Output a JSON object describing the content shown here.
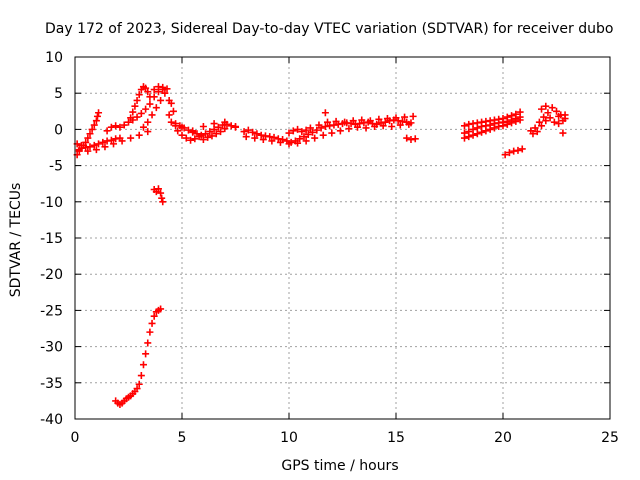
{
  "chart_data": {
    "type": "scatter",
    "title": "Day 172 of 2023, Sidereal Day-to-day VTEC variation (SDTVAR) for receiver dubo",
    "xlabel": "GPS time / hours",
    "ylabel": "SDTVAR / TECUs",
    "xlim": [
      0,
      25
    ],
    "ylim": [
      -40,
      10
    ],
    "xticks": [
      0,
      5,
      10,
      15,
      20,
      25
    ],
    "yticks": [
      -40,
      -35,
      -30,
      -25,
      -20,
      -15,
      -10,
      -5,
      0,
      5,
      10
    ],
    "grid": true,
    "marker": "+",
    "series_color": "#ff0000",
    "series": [
      {
        "name": "SDTVAR",
        "points": [
          [
            0.1,
            -3.5
          ],
          [
            0.2,
            -3.0
          ],
          [
            0.3,
            -2.6
          ],
          [
            0.4,
            -2.2
          ],
          [
            0.5,
            -1.8
          ],
          [
            0.6,
            -1.2
          ],
          [
            0.7,
            -0.6
          ],
          [
            0.8,
            0.0
          ],
          [
            0.9,
            0.6
          ],
          [
            1.0,
            1.2
          ],
          [
            1.05,
            1.8
          ],
          [
            1.1,
            2.3
          ],
          [
            0.1,
            -2.0
          ],
          [
            0.3,
            -2.2
          ],
          [
            0.5,
            -2.5
          ],
          [
            0.7,
            -2.4
          ],
          [
            0.9,
            -2.2
          ],
          [
            1.1,
            -2.0
          ],
          [
            1.3,
            -1.8
          ],
          [
            1.5,
            -1.6
          ],
          [
            1.7,
            -1.5
          ],
          [
            1.9,
            -1.3
          ],
          [
            2.1,
            -1.2
          ],
          [
            0.2,
            -2.8
          ],
          [
            0.6,
            -3.0
          ],
          [
            1.0,
            -2.8
          ],
          [
            1.4,
            -2.4
          ],
          [
            1.8,
            -2.0
          ],
          [
            2.2,
            -1.6
          ],
          [
            2.6,
            -1.2
          ],
          [
            3.0,
            -0.8
          ],
          [
            3.4,
            -0.3
          ],
          [
            1.5,
            -0.2
          ],
          [
            1.7,
            0.3
          ],
          [
            1.9,
            0.5
          ],
          [
            2.1,
            0.3
          ],
          [
            2.3,
            0.6
          ],
          [
            2.5,
            1.0
          ],
          [
            2.7,
            1.3
          ],
          [
            2.9,
            1.7
          ],
          [
            3.1,
            2.2
          ],
          [
            3.3,
            2.8
          ],
          [
            3.5,
            3.5
          ],
          [
            3.7,
            4.5
          ],
          [
            3.9,
            5.2
          ],
          [
            4.1,
            5.5
          ],
          [
            4.2,
            5.0
          ],
          [
            4.0,
            4.0
          ],
          [
            3.8,
            3.0
          ],
          [
            3.6,
            2.0
          ],
          [
            3.4,
            1.0
          ],
          [
            3.2,
            0.3
          ],
          [
            2.6,
            1.6
          ],
          [
            2.7,
            2.4
          ],
          [
            2.8,
            3.2
          ],
          [
            2.9,
            4.0
          ],
          [
            3.0,
            4.8
          ],
          [
            3.1,
            5.5
          ],
          [
            3.2,
            5.9
          ],
          [
            3.3,
            5.7
          ],
          [
            3.4,
            5.2
          ],
          [
            3.5,
            4.5
          ],
          [
            3.7,
            5.5
          ],
          [
            3.9,
            5.9
          ],
          [
            4.1,
            5.8
          ],
          [
            4.3,
            5.6
          ],
          [
            4.4,
            4.0
          ],
          [
            4.5,
            3.6
          ],
          [
            4.6,
            2.5
          ],
          [
            4.4,
            2.0
          ],
          [
            4.5,
            1.0
          ],
          [
            4.7,
            0.8
          ],
          [
            4.9,
            0.5
          ],
          [
            5.1,
            0.2
          ],
          [
            5.3,
            -0.1
          ],
          [
            5.5,
            -0.4
          ],
          [
            5.7,
            -0.6
          ],
          [
            5.9,
            -0.8
          ],
          [
            6.1,
            -0.6
          ],
          [
            6.3,
            -0.3
          ],
          [
            6.5,
            0.0
          ],
          [
            6.7,
            0.3
          ],
          [
            6.9,
            0.6
          ],
          [
            7.1,
            0.7
          ],
          [
            7.3,
            0.5
          ],
          [
            7.5,
            0.3
          ],
          [
            4.8,
            -0.2
          ],
          [
            5.0,
            -0.8
          ],
          [
            5.2,
            -1.2
          ],
          [
            5.4,
            -1.5
          ],
          [
            5.6,
            -1.3
          ],
          [
            5.8,
            -1.0
          ],
          [
            6.0,
            -1.4
          ],
          [
            6.2,
            -1.1
          ],
          [
            6.4,
            -0.9
          ],
          [
            6.6,
            -0.6
          ],
          [
            6.8,
            -0.3
          ],
          [
            7.0,
            0.1
          ],
          [
            4.7,
            0.5
          ],
          [
            5.0,
            0.3
          ],
          [
            5.5,
            -0.2
          ],
          [
            6.0,
            0.4
          ],
          [
            6.5,
            0.8
          ],
          [
            7.0,
            1.0
          ],
          [
            7.5,
            0.4
          ],
          [
            1.9,
            -37.5
          ],
          [
            2.0,
            -37.8
          ],
          [
            2.1,
            -38.0
          ],
          [
            2.2,
            -37.8
          ],
          [
            2.3,
            -37.5
          ],
          [
            2.4,
            -37.2
          ],
          [
            2.5,
            -37.0
          ],
          [
            2.6,
            -36.8
          ],
          [
            2.7,
            -36.5
          ],
          [
            2.8,
            -36.2
          ],
          [
            2.9,
            -35.8
          ],
          [
            3.0,
            -35.2
          ],
          [
            3.1,
            -34.0
          ],
          [
            3.2,
            -32.5
          ],
          [
            3.3,
            -31.0
          ],
          [
            3.4,
            -29.5
          ],
          [
            3.5,
            -28.0
          ],
          [
            3.6,
            -26.8
          ],
          [
            3.7,
            -25.8
          ],
          [
            3.8,
            -25.2
          ],
          [
            3.9,
            -25.0
          ],
          [
            4.0,
            -24.8
          ],
          [
            3.7,
            -8.3
          ],
          [
            3.8,
            -8.6
          ],
          [
            3.9,
            -8.2
          ],
          [
            4.0,
            -8.8
          ],
          [
            4.05,
            -9.5
          ],
          [
            4.1,
            -10.0
          ],
          [
            7.9,
            -0.3
          ],
          [
            8.1,
            -0.1
          ],
          [
            8.3,
            -0.4
          ],
          [
            8.5,
            -0.6
          ],
          [
            8.7,
            -0.8
          ],
          [
            8.9,
            -0.9
          ],
          [
            9.1,
            -1.0
          ],
          [
            9.3,
            -1.1
          ],
          [
            9.5,
            -1.3
          ],
          [
            9.7,
            -1.4
          ],
          [
            9.9,
            -1.6
          ],
          [
            10.1,
            -1.8
          ],
          [
            10.3,
            -1.6
          ],
          [
            10.5,
            -1.3
          ],
          [
            10.7,
            -1.0
          ],
          [
            10.9,
            -0.7
          ],
          [
            11.1,
            -0.4
          ],
          [
            11.3,
            -0.1
          ],
          [
            11.5,
            0.2
          ],
          [
            11.7,
            0.4
          ],
          [
            11.9,
            0.5
          ],
          [
            12.1,
            0.6
          ],
          [
            12.3,
            0.7
          ],
          [
            12.5,
            0.8
          ],
          [
            12.7,
            0.9
          ],
          [
            12.9,
            0.8
          ],
          [
            13.1,
            0.7
          ],
          [
            13.3,
            0.8
          ],
          [
            13.5,
            0.9
          ],
          [
            13.7,
            1.0
          ],
          [
            13.9,
            0.8
          ],
          [
            14.1,
            0.7
          ],
          [
            14.3,
            0.9
          ],
          [
            14.5,
            1.0
          ],
          [
            14.7,
            1.2
          ],
          [
            14.9,
            1.3
          ],
          [
            15.1,
            1.2
          ],
          [
            15.3,
            1.1
          ],
          [
            15.5,
            1.0
          ],
          [
            15.7,
            0.9
          ],
          [
            8.0,
            -1.0
          ],
          [
            8.4,
            -1.2
          ],
          [
            8.8,
            -1.4
          ],
          [
            9.2,
            -1.6
          ],
          [
            9.6,
            -1.8
          ],
          [
            10.0,
            -2.0
          ],
          [
            10.4,
            -1.9
          ],
          [
            10.8,
            -1.6
          ],
          [
            11.2,
            -1.2
          ],
          [
            11.6,
            -0.8
          ],
          [
            12.0,
            -0.5
          ],
          [
            12.4,
            -0.2
          ],
          [
            12.8,
            0.1
          ],
          [
            13.2,
            0.3
          ],
          [
            13.6,
            0.2
          ],
          [
            14.0,
            0.4
          ],
          [
            14.4,
            0.5
          ],
          [
            14.8,
            0.4
          ],
          [
            15.2,
            0.6
          ],
          [
            15.6,
            0.7
          ],
          [
            10.0,
            -0.5
          ],
          [
            10.2,
            -0.2
          ],
          [
            10.4,
            0.0
          ],
          [
            10.6,
            -0.3
          ],
          [
            10.8,
            -0.1
          ],
          [
            11.0,
            0.2
          ],
          [
            11.4,
            0.6
          ],
          [
            11.8,
            1.0
          ],
          [
            12.2,
            1.1
          ],
          [
            12.6,
            1.0
          ],
          [
            13.0,
            1.2
          ],
          [
            13.4,
            1.3
          ],
          [
            13.8,
            1.2
          ],
          [
            14.2,
            1.4
          ],
          [
            14.6,
            1.5
          ],
          [
            15.0,
            1.6
          ],
          [
            15.4,
            1.7
          ],
          [
            15.8,
            1.8
          ],
          [
            11.7,
            2.3
          ],
          [
            15.5,
            -1.2
          ],
          [
            15.7,
            -1.4
          ],
          [
            15.9,
            -1.3
          ],
          [
            18.2,
            0.5
          ],
          [
            18.4,
            0.7
          ],
          [
            18.6,
            0.8
          ],
          [
            18.8,
            0.9
          ],
          [
            19.0,
            1.0
          ],
          [
            19.2,
            1.1
          ],
          [
            19.4,
            1.2
          ],
          [
            19.6,
            1.3
          ],
          [
            19.8,
            1.4
          ],
          [
            20.0,
            1.5
          ],
          [
            20.2,
            1.7
          ],
          [
            20.4,
            1.9
          ],
          [
            20.6,
            2.1
          ],
          [
            20.8,
            2.4
          ],
          [
            18.2,
            -0.5
          ],
          [
            18.4,
            -0.3
          ],
          [
            18.6,
            0.0
          ],
          [
            18.8,
            0.2
          ],
          [
            19.0,
            0.4
          ],
          [
            19.2,
            0.5
          ],
          [
            19.4,
            0.6
          ],
          [
            19.6,
            0.8
          ],
          [
            19.8,
            0.9
          ],
          [
            20.0,
            1.0
          ],
          [
            20.2,
            1.1
          ],
          [
            20.4,
            1.3
          ],
          [
            20.6,
            1.5
          ],
          [
            20.8,
            1.7
          ],
          [
            18.2,
            -1.2
          ],
          [
            18.4,
            -1.0
          ],
          [
            18.6,
            -0.8
          ],
          [
            18.8,
            -0.6
          ],
          [
            19.0,
            -0.4
          ],
          [
            19.2,
            -0.2
          ],
          [
            19.4,
            0.0
          ],
          [
            19.6,
            0.2
          ],
          [
            19.8,
            0.4
          ],
          [
            20.0,
            0.5
          ],
          [
            20.2,
            0.7
          ],
          [
            20.4,
            0.9
          ],
          [
            20.6,
            1.1
          ],
          [
            20.8,
            1.3
          ],
          [
            20.1,
            -3.5
          ],
          [
            20.3,
            -3.2
          ],
          [
            20.5,
            -3.0
          ],
          [
            20.7,
            -2.9
          ],
          [
            20.9,
            -2.7
          ],
          [
            21.3,
            -0.2
          ],
          [
            21.5,
            0.2
          ],
          [
            21.7,
            1.0
          ],
          [
            21.9,
            1.7
          ],
          [
            22.1,
            2.3
          ],
          [
            22.3,
            3.0
          ],
          [
            22.5,
            2.5
          ],
          [
            22.7,
            2.0
          ],
          [
            22.9,
            1.5
          ],
          [
            22.8,
            -0.5
          ],
          [
            21.4,
            -0.6
          ],
          [
            21.6,
            -0.3
          ],
          [
            21.8,
            0.5
          ],
          [
            22.0,
            1.2
          ],
          [
            22.2,
            1.6
          ],
          [
            22.4,
            1.0
          ],
          [
            22.6,
            0.8
          ],
          [
            22.8,
            1.2
          ],
          [
            22.9,
            2.0
          ],
          [
            21.8,
            2.8
          ],
          [
            22.0,
            3.2
          ],
          [
            22.6,
            1.8
          ]
        ]
      }
    ]
  }
}
